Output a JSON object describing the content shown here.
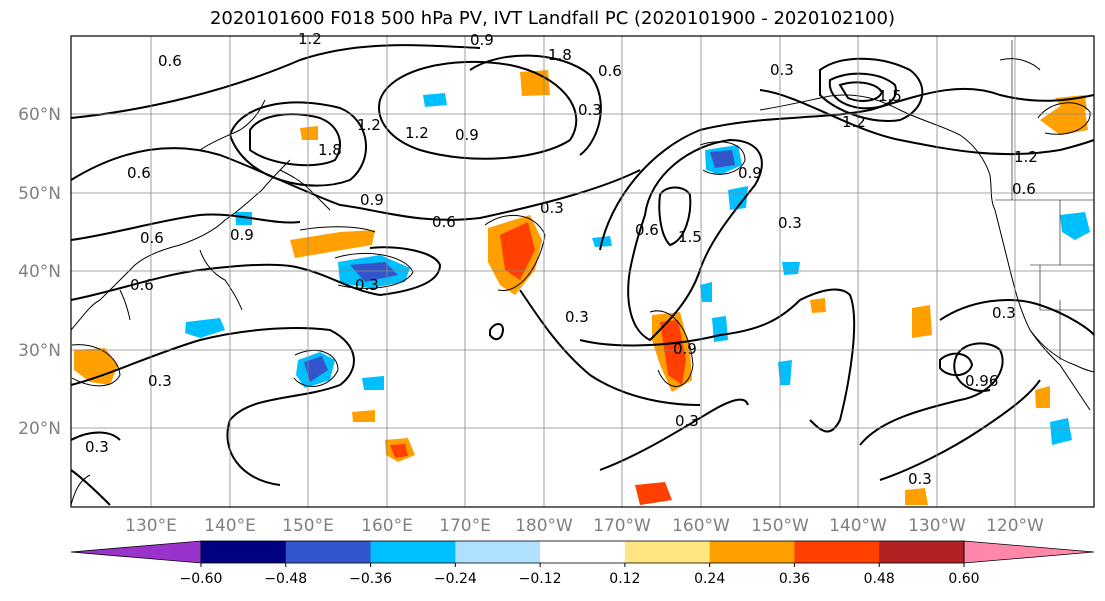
{
  "title": "2020101600 F018 500 hPa PV, IVT Landfall PC (2020101900 - 2020102100)",
  "lat_ticks": [
    "60°N",
    "50°N",
    "40°N",
    "30°N",
    "20°N"
  ],
  "lon_ticks": [
    "130°E",
    "140°E",
    "150°E",
    "160°E",
    "170°E",
    "180°W",
    "170°W",
    "160°W",
    "150°W",
    "140°W",
    "130°W",
    "120°W"
  ],
  "colorbar": {
    "colors": [
      "#9933cc",
      "#000080",
      "#3355cc",
      "#00bfff",
      "#b0e0ff",
      "#ffffff",
      "#ffe680",
      "#ffa000",
      "#ff4000",
      "#b22222",
      "#ff88aa"
    ],
    "tick_labels": [
      "−0.60",
      "−0.48",
      "−0.36",
      "−0.24",
      "−0.12",
      "0.12",
      "0.24",
      "0.36",
      "0.48",
      "0.60"
    ]
  },
  "contour_labels": [
    "1.2",
    "0.6",
    "1.8",
    "1.2",
    "0.3",
    "0.9",
    "1.2",
    "0.9",
    "1.8",
    "0.9",
    "0.6",
    "0.6",
    "0.9",
    "0.6",
    "0.3",
    "0.6",
    "0.3",
    "0.3",
    "1.5",
    "0.3",
    "0.6",
    "0.3",
    "0.9",
    "0.3",
    "0.3",
    "1.2",
    "0.6",
    "0.96",
    "0.3",
    "1.2",
    "1.5",
    "0.9",
    "0.6",
    "0.3",
    "0.3"
  ]
}
